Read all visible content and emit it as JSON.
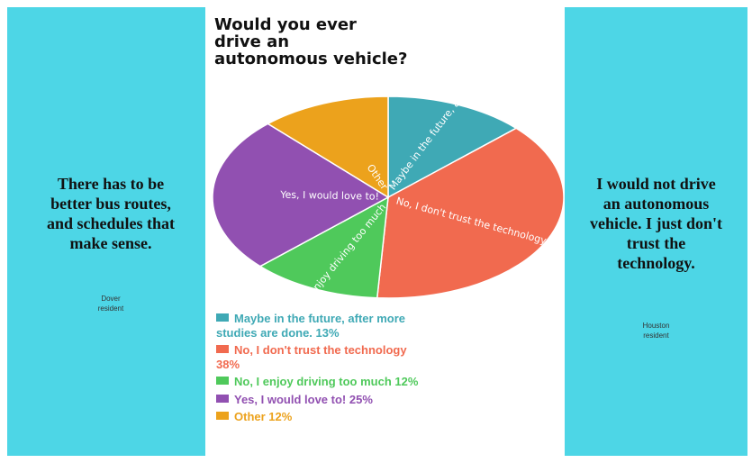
{
  "left_panel": {
    "quote": "There has to be better bus routes,  and schedules that make sense.",
    "attribution": "Dover\nresident"
  },
  "right_panel": {
    "quote": "I would not drive an autonomous vehicle.  I just don't trust the technology.",
    "attribution": "Houston\nresident"
  },
  "chart_data": {
    "type": "pie",
    "title": "Would you ever drive an autonomous vehicle?",
    "slices": [
      {
        "label": "Maybe in the future, after more studies are done.",
        "legend": "Maybe in the future, after more studies are done. 13%",
        "value": 13,
        "color": "#3fa9b5"
      },
      {
        "label": "No, I don't trust the technology",
        "legend": "No, I don't trust the technology 38%",
        "value": 38,
        "color": "#f16a4f"
      },
      {
        "label": "No, I enjoy driving too much",
        "legend": "No, I enjoy driving too much 12%",
        "value": 12,
        "color": "#4fc95b"
      },
      {
        "label": "Yes, I would love to!",
        "legend": "Yes, I would love to! 25%",
        "value": 25,
        "color": "#9150b1"
      },
      {
        "label": "Other",
        "legend": "Other 12%",
        "value": 12,
        "color": "#eca21c"
      }
    ],
    "start_angle_deg": -90,
    "direction": "clockwise",
    "legend_placement": "below"
  }
}
